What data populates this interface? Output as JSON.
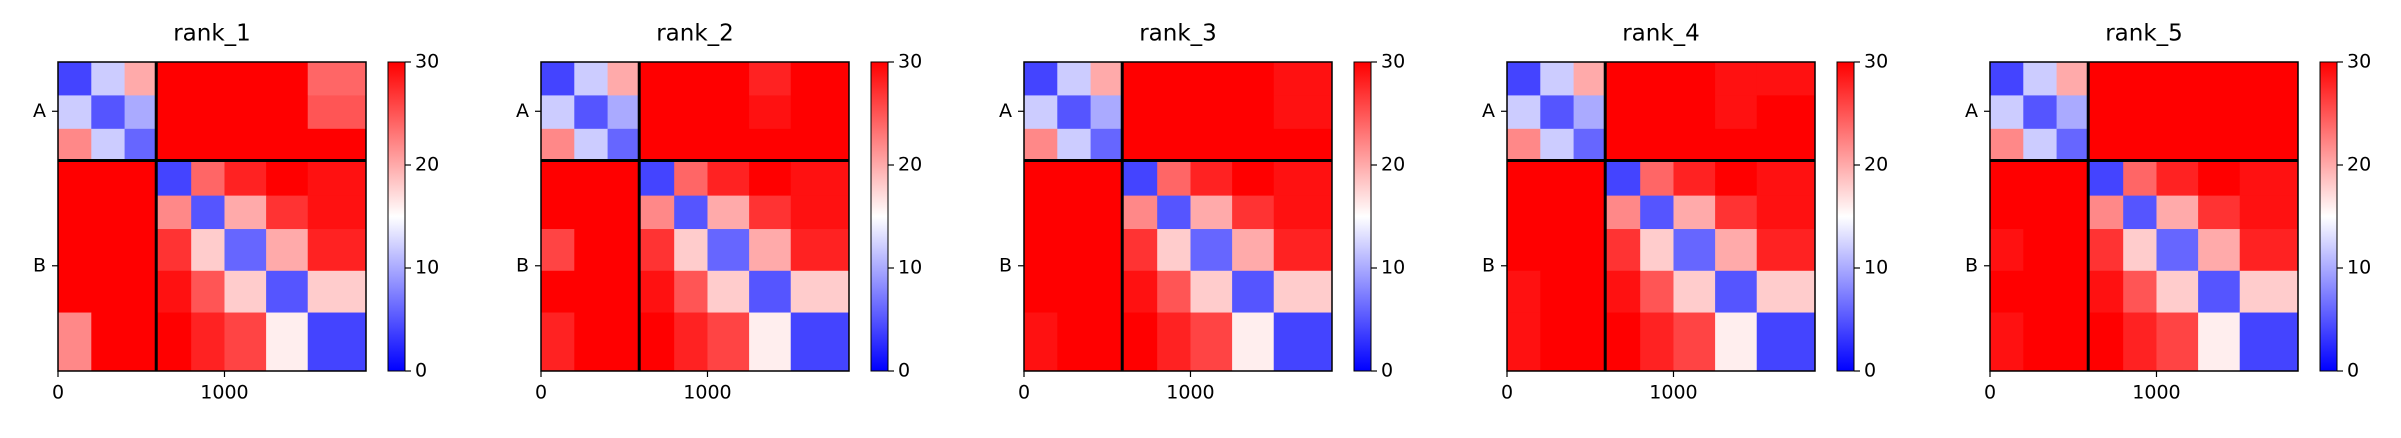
{
  "chart_data": [
    {
      "type": "heatmap",
      "title": "rank_1",
      "bins": [
        0,
        200,
        400,
        590,
        800,
        1000,
        1250,
        1500,
        1850
      ],
      "matrix": [
        [
          4,
          12,
          20,
          30,
          30,
          30,
          30,
          24
        ],
        [
          12,
          5,
          10,
          30,
          30,
          30,
          30,
          25
        ],
        [
          22,
          12,
          6,
          30,
          30,
          30,
          30,
          30
        ],
        [
          30,
          30,
          30,
          4,
          24,
          28,
          30,
          29
        ],
        [
          30,
          30,
          30,
          22,
          5,
          20,
          27,
          29
        ],
        [
          30,
          30,
          30,
          27,
          18,
          6,
          20,
          28
        ],
        [
          30,
          30,
          30,
          29,
          25,
          18,
          5,
          18
        ],
        [
          22,
          30,
          30,
          30,
          28,
          26,
          16,
          4
        ]
      ],
      "xlim": [
        0,
        1850
      ],
      "ylim": [
        1850,
        0
      ],
      "xticks": [
        0,
        1000
      ],
      "yticks": [
        {
          "value": 295,
          "label": "A"
        },
        {
          "value": 1220,
          "label": "B"
        }
      ],
      "chain_breaks": [
        590
      ],
      "clim": [
        0,
        30
      ],
      "cticks": [
        0,
        10,
        20,
        30
      ],
      "colors": [
        "#0000ff",
        "#ffffff",
        "#ff0000"
      ]
    },
    {
      "type": "heatmap",
      "title": "rank_2",
      "bins": [
        0,
        200,
        400,
        590,
        800,
        1000,
        1250,
        1500,
        1850
      ],
      "matrix": [
        [
          4,
          12,
          20,
          30,
          30,
          30,
          28,
          30
        ],
        [
          12,
          5,
          10,
          30,
          30,
          30,
          29,
          30
        ],
        [
          22,
          12,
          6,
          30,
          30,
          30,
          30,
          30
        ],
        [
          30,
          30,
          30,
          4,
          24,
          28,
          30,
          29
        ],
        [
          30,
          30,
          30,
          22,
          5,
          20,
          27,
          29
        ],
        [
          26,
          30,
          30,
          27,
          18,
          6,
          20,
          28
        ],
        [
          30,
          30,
          30,
          29,
          25,
          18,
          5,
          18
        ],
        [
          28,
          30,
          30,
          30,
          28,
          26,
          16,
          4
        ]
      ],
      "xlim": [
        0,
        1850
      ],
      "ylim": [
        1850,
        0
      ],
      "xticks": [
        0,
        1000
      ],
      "yticks": [
        {
          "value": 295,
          "label": "A"
        },
        {
          "value": 1220,
          "label": "B"
        }
      ],
      "chain_breaks": [
        590
      ],
      "clim": [
        0,
        30
      ],
      "cticks": [
        0,
        10,
        20,
        30
      ],
      "colors": [
        "#0000ff",
        "#ffffff",
        "#ff0000"
      ]
    },
    {
      "type": "heatmap",
      "title": "rank_3",
      "bins": [
        0,
        200,
        400,
        590,
        800,
        1000,
        1250,
        1500,
        1850
      ],
      "matrix": [
        [
          4,
          12,
          20,
          30,
          30,
          30,
          30,
          29
        ],
        [
          12,
          5,
          10,
          30,
          30,
          30,
          30,
          29
        ],
        [
          22,
          12,
          6,
          30,
          30,
          30,
          30,
          30
        ],
        [
          30,
          30,
          30,
          4,
          24,
          28,
          30,
          29
        ],
        [
          30,
          30,
          30,
          22,
          5,
          20,
          27,
          29
        ],
        [
          30,
          30,
          30,
          27,
          18,
          6,
          20,
          28
        ],
        [
          30,
          30,
          30,
          29,
          25,
          18,
          5,
          18
        ],
        [
          29,
          30,
          30,
          30,
          28,
          26,
          16,
          4
        ]
      ],
      "xlim": [
        0,
        1850
      ],
      "ylim": [
        1850,
        0
      ],
      "xticks": [
        0,
        1000
      ],
      "yticks": [
        {
          "value": 295,
          "label": "A"
        },
        {
          "value": 1220,
          "label": "B"
        }
      ],
      "chain_breaks": [
        590
      ],
      "clim": [
        0,
        30
      ],
      "cticks": [
        0,
        10,
        20,
        30
      ],
      "colors": [
        "#0000ff",
        "#ffffff",
        "#ff0000"
      ]
    },
    {
      "type": "heatmap",
      "title": "rank_4",
      "bins": [
        0,
        200,
        400,
        590,
        800,
        1000,
        1250,
        1500,
        1850
      ],
      "matrix": [
        [
          4,
          12,
          20,
          30,
          30,
          30,
          29,
          29
        ],
        [
          12,
          5,
          10,
          30,
          30,
          30,
          29,
          30
        ],
        [
          22,
          12,
          6,
          30,
          30,
          30,
          30,
          30
        ],
        [
          30,
          30,
          30,
          4,
          24,
          28,
          30,
          29
        ],
        [
          30,
          30,
          30,
          22,
          5,
          20,
          27,
          29
        ],
        [
          30,
          30,
          30,
          27,
          18,
          6,
          20,
          28
        ],
        [
          29,
          30,
          30,
          29,
          25,
          18,
          5,
          18
        ],
        [
          29,
          30,
          30,
          30,
          28,
          26,
          16,
          4
        ]
      ],
      "xlim": [
        0,
        1850
      ],
      "ylim": [
        1850,
        0
      ],
      "xticks": [
        0,
        1000
      ],
      "yticks": [
        {
          "value": 295,
          "label": "A"
        },
        {
          "value": 1220,
          "label": "B"
        }
      ],
      "chain_breaks": [
        590
      ],
      "clim": [
        0,
        30
      ],
      "cticks": [
        0,
        10,
        20,
        30
      ],
      "colors": [
        "#0000ff",
        "#ffffff",
        "#ff0000"
      ]
    },
    {
      "type": "heatmap",
      "title": "rank_5",
      "bins": [
        0,
        200,
        400,
        590,
        800,
        1000,
        1250,
        1500,
        1850
      ],
      "matrix": [
        [
          4,
          12,
          20,
          30,
          30,
          30,
          30,
          30
        ],
        [
          12,
          5,
          10,
          30,
          30,
          30,
          30,
          30
        ],
        [
          22,
          12,
          6,
          30,
          30,
          30,
          30,
          30
        ],
        [
          30,
          30,
          30,
          4,
          24,
          28,
          30,
          29
        ],
        [
          30,
          30,
          30,
          22,
          5,
          20,
          27,
          29
        ],
        [
          29,
          30,
          30,
          27,
          18,
          6,
          20,
          28
        ],
        [
          30,
          30,
          30,
          29,
          25,
          18,
          5,
          18
        ],
        [
          29,
          30,
          30,
          30,
          28,
          26,
          16,
          4
        ]
      ],
      "xlim": [
        0,
        1850
      ],
      "ylim": [
        1850,
        0
      ],
      "xticks": [
        0,
        1000
      ],
      "yticks": [
        {
          "value": 295,
          "label": "A"
        },
        {
          "value": 1220,
          "label": "B"
        }
      ],
      "chain_breaks": [
        590
      ],
      "clim": [
        0,
        30
      ],
      "cticks": [
        0,
        10,
        20,
        30
      ],
      "colors": [
        "#0000ff",
        "#ffffff",
        "#ff0000"
      ]
    }
  ]
}
